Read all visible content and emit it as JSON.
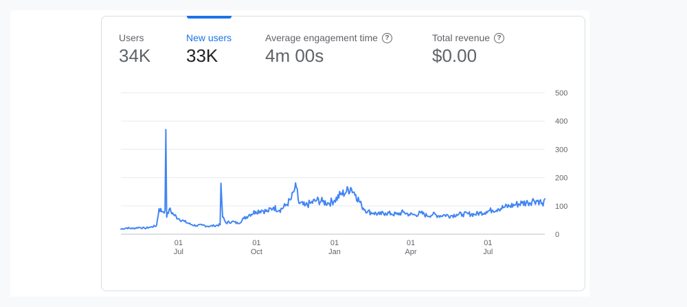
{
  "metrics": [
    {
      "label": "Users",
      "value": "34K",
      "help": false,
      "active": false
    },
    {
      "label": "New users",
      "value": "33K",
      "help": false,
      "active": true
    },
    {
      "label": "Average engagement time",
      "value": "4m 00s",
      "help": true,
      "active": false
    },
    {
      "label": "Total revenue",
      "value": "$0.00",
      "help": true,
      "active": false
    }
  ],
  "colors": {
    "accent": "#1a73e8",
    "line": "#4285f4",
    "text": "#5f6368",
    "border": "#dadce0"
  },
  "icons": {
    "help": "help-circle-icon"
  },
  "chart_data": {
    "type": "line",
    "series": [
      {
        "name": "New users",
        "color": "#4285f4"
      }
    ],
    "ylim": [
      0,
      500
    ],
    "yticks": [
      "0",
      "100",
      "200",
      "300",
      "400",
      "500"
    ],
    "xticks": [
      {
        "day": "01",
        "month": "Jul",
        "x": "2022-07-01"
      },
      {
        "day": "01",
        "month": "Oct",
        "x": "2022-10-01"
      },
      {
        "day": "01",
        "month": "Jan",
        "x": "2023-01-01"
      },
      {
        "day": "01",
        "month": "Apr",
        "x": "2023-04-01"
      },
      {
        "day": "01",
        "month": "Jul",
        "x": "2023-07-01"
      }
    ],
    "grid": true,
    "points": [
      [
        "2022-04-24",
        18
      ],
      [
        "2022-05-01",
        22
      ],
      [
        "2022-05-08",
        20
      ],
      [
        "2022-05-15",
        24
      ],
      [
        "2022-05-22",
        21
      ],
      [
        "2022-05-29",
        25
      ],
      [
        "2022-06-05",
        30
      ],
      [
        "2022-06-08",
        90
      ],
      [
        "2022-06-12",
        80
      ],
      [
        "2022-06-15",
        85
      ],
      [
        "2022-06-16",
        370
      ],
      [
        "2022-06-17",
        60
      ],
      [
        "2022-06-20",
        88
      ],
      [
        "2022-06-25",
        70
      ],
      [
        "2022-07-01",
        55
      ],
      [
        "2022-07-08",
        45
      ],
      [
        "2022-07-15",
        35
      ],
      [
        "2022-07-22",
        30
      ],
      [
        "2022-07-29",
        32
      ],
      [
        "2022-08-05",
        28
      ],
      [
        "2022-08-12",
        30
      ],
      [
        "2022-08-19",
        33
      ],
      [
        "2022-08-20",
        180
      ],
      [
        "2022-08-22",
        60
      ],
      [
        "2022-08-26",
        40
      ],
      [
        "2022-09-02",
        45
      ],
      [
        "2022-09-09",
        38
      ],
      [
        "2022-09-16",
        55
      ],
      [
        "2022-09-23",
        70
      ],
      [
        "2022-09-30",
        80
      ],
      [
        "2022-10-07",
        85
      ],
      [
        "2022-10-14",
        80
      ],
      [
        "2022-10-21",
        95
      ],
      [
        "2022-10-28",
        85
      ],
      [
        "2022-11-04",
        100
      ],
      [
        "2022-11-11",
        125
      ],
      [
        "2022-11-15",
        160
      ],
      [
        "2022-11-17",
        165
      ],
      [
        "2022-11-20",
        110
      ],
      [
        "2022-11-27",
        100
      ],
      [
        "2022-12-04",
        110
      ],
      [
        "2022-12-11",
        120
      ],
      [
        "2022-12-18",
        115
      ],
      [
        "2022-12-25",
        110
      ],
      [
        "2023-01-01",
        120
      ],
      [
        "2023-01-08",
        140
      ],
      [
        "2023-01-15",
        150
      ],
      [
        "2023-01-20",
        165
      ],
      [
        "2023-01-26",
        140
      ],
      [
        "2023-02-02",
        100
      ],
      [
        "2023-02-09",
        80
      ],
      [
        "2023-02-16",
        75
      ],
      [
        "2023-02-23",
        70
      ],
      [
        "2023-03-02",
        75
      ],
      [
        "2023-03-09",
        72
      ],
      [
        "2023-03-16",
        70
      ],
      [
        "2023-03-23",
        78
      ],
      [
        "2023-03-30",
        70
      ],
      [
        "2023-04-06",
        68
      ],
      [
        "2023-04-13",
        75
      ],
      [
        "2023-04-20",
        65
      ],
      [
        "2023-04-27",
        70
      ],
      [
        "2023-05-04",
        65
      ],
      [
        "2023-05-11",
        68
      ],
      [
        "2023-05-18",
        65
      ],
      [
        "2023-05-25",
        70
      ],
      [
        "2023-06-01",
        70
      ],
      [
        "2023-06-08",
        72
      ],
      [
        "2023-06-15",
        70
      ],
      [
        "2023-06-22",
        75
      ],
      [
        "2023-06-29",
        80
      ],
      [
        "2023-07-06",
        85
      ],
      [
        "2023-07-13",
        90
      ],
      [
        "2023-07-20",
        95
      ],
      [
        "2023-07-27",
        100
      ],
      [
        "2023-08-03",
        105
      ],
      [
        "2023-08-10",
        110
      ],
      [
        "2023-08-17",
        112
      ],
      [
        "2023-08-24",
        120
      ],
      [
        "2023-08-31",
        118
      ],
      [
        "2023-09-04",
        100
      ],
      [
        "2023-09-06",
        125
      ]
    ]
  }
}
